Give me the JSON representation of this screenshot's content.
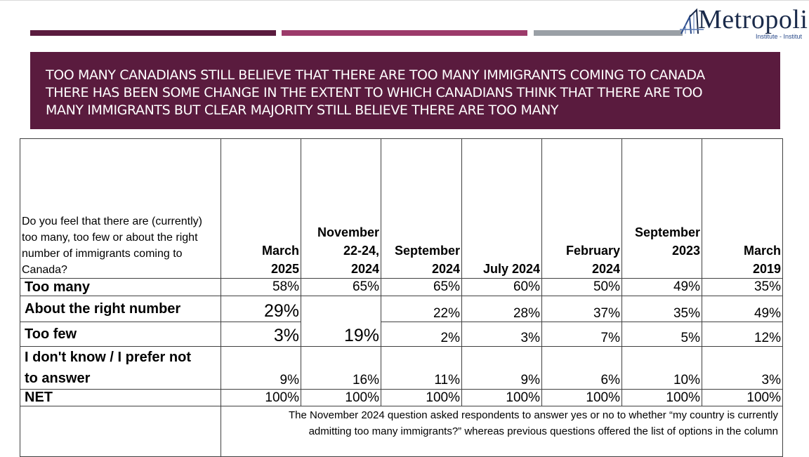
{
  "banner": {
    "line1": "TOO MANY CANADIANS STILL BELIEVE THAT THERE ARE TOO MANY IMMIGRANTS COMING TO CANADA",
    "line2": "THERE HAS BEEN SOME CHANGE IN THE EXTENT TO WHICH CANADIANS THINK THAT THERE ARE TOO",
    "line3": "MANY IMMIGRANTS BUT CLEAR MAJORITY STILL BELIEVE THERE ARE TOO MANY"
  },
  "logo": {
    "name": "Metropolis",
    "subtitle": "Institute - Institut"
  },
  "table": {
    "question": "Do you feel that there are (currently) too many, too few or about the right number of immigrants coming to Canada?",
    "columns": [
      {
        "l1": "March",
        "l2": "2025"
      },
      {
        "l0": "November",
        "l1": "22-24,",
        "l2": "2024"
      },
      {
        "l1": "September",
        "l2": "2024"
      },
      {
        "l2": "July 2024"
      },
      {
        "l1": "February",
        "l2": "2024"
      },
      {
        "l0": "September",
        "l1": "2023"
      },
      {
        "l1": "March",
        "l2": "2019"
      }
    ],
    "rows": {
      "too_many": {
        "label": "Too many",
        "v": [
          "58%",
          "65%",
          "65%",
          "60%",
          "50%",
          "49%",
          "35%"
        ]
      },
      "about_right": {
        "label": "About the right number",
        "v": [
          "29%",
          "22%",
          "28%",
          "37%",
          "35%",
          "49%"
        ]
      },
      "too_few": {
        "label": "Too few",
        "v": [
          "3%",
          "2%",
          "3%",
          "7%",
          "5%",
          "12%"
        ]
      },
      "nov_merged": "19%",
      "dont_know": {
        "label_l1": "I don't know / I prefer not",
        "label_l2": "to answer",
        "v": [
          "9%",
          "16%",
          "11%",
          "9%",
          "6%",
          "10%",
          "3%"
        ]
      },
      "net": {
        "label": "NET",
        "v": [
          "100%",
          "100%",
          "100%",
          "100%",
          "100%",
          "100%",
          "100%"
        ]
      }
    },
    "note_l1": "The November 2024 question asked respondents to answer yes or no to whether “my country is currently",
    "note_l2": "admitting too many immigrants?” whereas previous questions offered the list of options in the column"
  }
}
